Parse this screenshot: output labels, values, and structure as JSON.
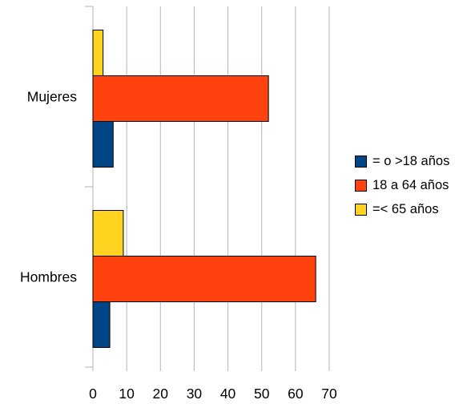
{
  "chart_data": {
    "type": "bar",
    "orientation": "horizontal",
    "title": "",
    "xlabel": "",
    "ylabel": "",
    "categories": [
      "Mujeres",
      "Hombres"
    ],
    "series": [
      {
        "name": "= o >18 años",
        "color": "#004586",
        "values": [
          6,
          5
        ]
      },
      {
        "name": "18 a 64 años",
        "color": "#ff420e",
        "values": [
          52,
          66
        ]
      },
      {
        "name": "=< 65 años",
        "color": "#ffd320",
        "values": [
          3,
          9
        ]
      }
    ],
    "xlim": [
      0,
      70
    ],
    "xticks": [
      0,
      10,
      20,
      30,
      40,
      50,
      60,
      70
    ],
    "grid": "vertical",
    "legend_position": "right"
  }
}
